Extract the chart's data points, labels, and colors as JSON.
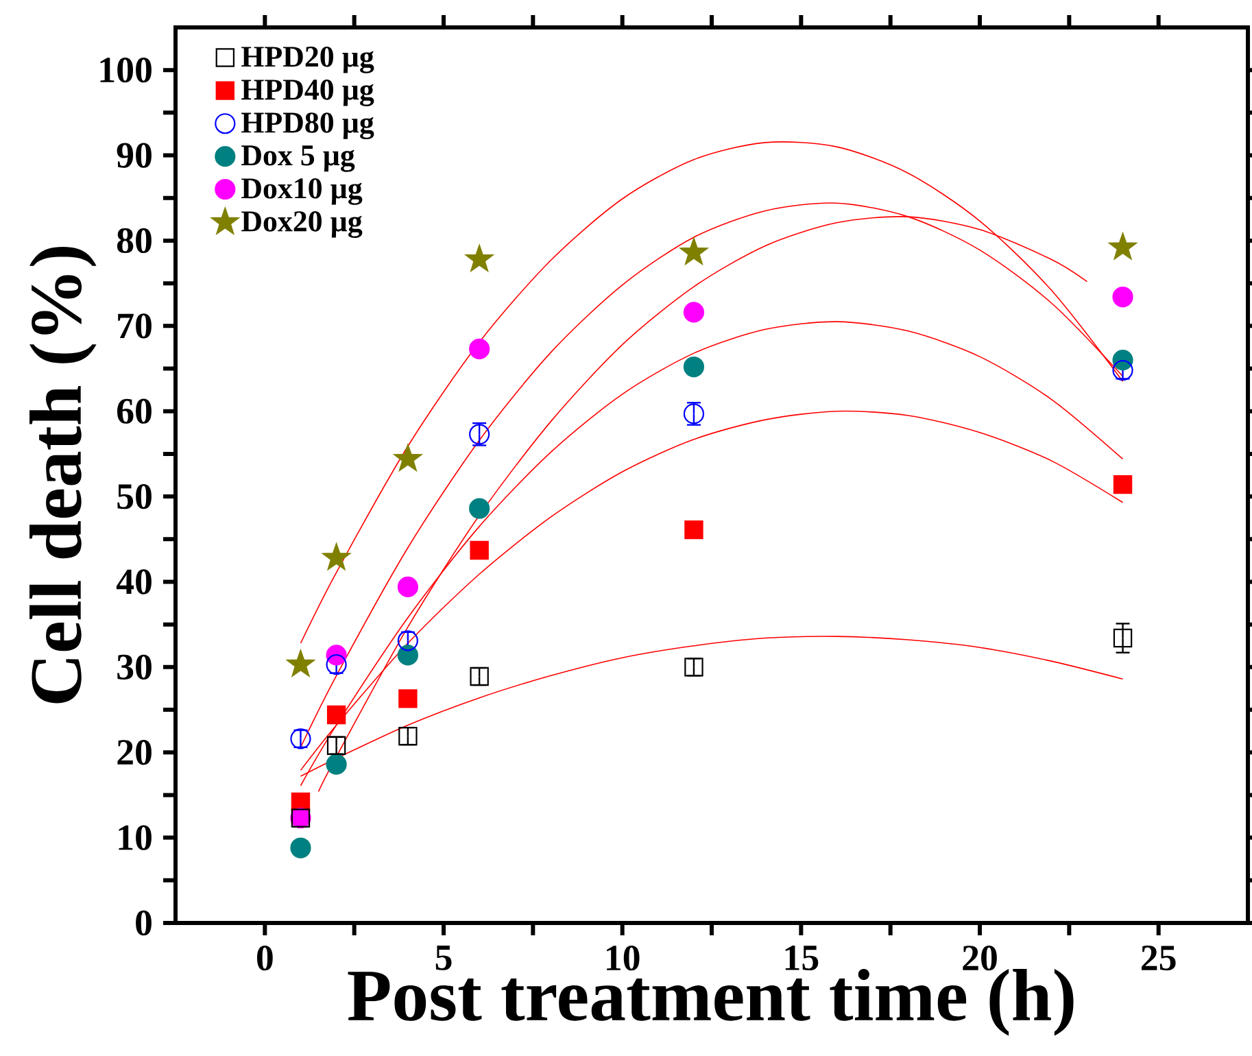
{
  "chart_data": {
    "type": "scatter",
    "xlabel": "Post treatment time (h)",
    "ylabel": "Cell death (%)",
    "xlim": [
      -2.5,
      27.5
    ],
    "ylim": [
      0,
      105
    ],
    "xticks": [
      0,
      {
        "value": 2.5,
        "label": null
      },
      5,
      {
        "value": 7.5,
        "label": null
      },
      10,
      {
        "value": 12.5,
        "label": null
      },
      15,
      {
        "value": 17.5,
        "label": null
      },
      20,
      {
        "value": 22.5,
        "label": null
      },
      25
    ],
    "yticks": [
      0,
      {
        "value": 5,
        "label": null
      },
      10,
      {
        "value": 15,
        "label": null
      },
      20,
      {
        "value": 25,
        "label": null
      },
      30,
      {
        "value": 35,
        "label": null
      },
      40,
      {
        "value": 45,
        "label": null
      },
      50,
      {
        "value": 55,
        "label": null
      },
      60,
      {
        "value": 65,
        "label": null
      },
      70,
      {
        "value": 75,
        "label": null
      },
      80,
      {
        "value": 85,
        "label": null
      },
      90,
      {
        "value": 95,
        "label": null
      },
      100
    ],
    "legend": "top left",
    "x": [
      1,
      2,
      4,
      6,
      12,
      24
    ],
    "series": [
      {
        "name": "HPD20 µg",
        "color": "#000000",
        "marker": "square",
        "values": [
          12.3,
          20.8,
          21.9,
          28.9,
          30.0,
          33.4
        ],
        "errors": [
          1,
          1,
          1,
          1,
          1,
          1.7
        ]
      },
      {
        "name": "HPD40 µg",
        "color": "#ff0000",
        "marker": "square",
        "values": [
          14.2,
          24.4,
          26.3,
          43.7,
          46.1,
          51.4
        ]
      },
      {
        "name": "HPD80 µg",
        "color": "#0000ff",
        "marker": "circle",
        "values": [
          21.6,
          30.3,
          33.1,
          57.3,
          59.7,
          64.8
        ],
        "errors": [
          1,
          1,
          1,
          1.3,
          1.3,
          1
        ]
      },
      {
        "name": "Dox 5 µg",
        "color": "#008080",
        "marker": "circle",
        "values": [
          8.8,
          18.6,
          31.4,
          48.6,
          65.2,
          66.0
        ]
      },
      {
        "name": "Dox10 µg",
        "color": "#ff00ff",
        "marker": "circle",
        "values": [
          12.3,
          31.4,
          39.4,
          67.3,
          71.6,
          73.4
        ]
      },
      {
        "name": "Dox20 µg",
        "color": "#808000",
        "marker": "star",
        "values": [
          30.3,
          42.8,
          54.4,
          77.8,
          78.6,
          79.2
        ]
      },
      {
        "type": "line",
        "color": "#ff0000",
        "marker": "none",
        "x": [
          1,
          2,
          4,
          6,
          8,
          10,
          12,
          14,
          16,
          18,
          20,
          22,
          24
        ],
        "values": [
          32.8,
          41.1,
          55.9,
          68.1,
          77.7,
          84.9,
          89.5,
          91.5,
          91.0,
          87.9,
          82.3,
          74.2,
          63.5
        ]
      },
      {
        "type": "line",
        "color": "#ff0000",
        "marker": "none",
        "x": [
          1,
          2,
          4,
          6,
          8,
          10,
          12,
          14,
          16,
          18,
          20,
          22,
          24
        ],
        "values": [
          20.6,
          29.0,
          44.0,
          56.6,
          66.9,
          74.8,
          80.4,
          83.5,
          84.4,
          82.8,
          78.9,
          72.7,
          64.1
        ]
      },
      {
        "type": "line",
        "color": "#ff0000",
        "marker": "none",
        "x": [
          1.5,
          2,
          4,
          6,
          8,
          10,
          12,
          14,
          16,
          18,
          20,
          22,
          23
        ],
        "values": [
          15.4,
          19.5,
          34.7,
          47.8,
          58.8,
          67.8,
          74.6,
          79.4,
          82.1,
          82.8,
          81.3,
          77.8,
          75.2
        ]
      },
      {
        "type": "line",
        "color": "#ff0000",
        "marker": "none",
        "x": [
          1,
          2,
          4,
          6,
          8,
          10,
          12,
          14,
          16,
          18,
          20,
          22,
          24
        ],
        "values": [
          16.1,
          23.2,
          35.8,
          46.5,
          55.2,
          62.0,
          66.8,
          69.6,
          70.5,
          69.4,
          66.4,
          61.4,
          54.4
        ]
      },
      {
        "type": "line",
        "color": "#ff0000",
        "marker": "none",
        "x": [
          1,
          2,
          4,
          6,
          8,
          10,
          12,
          14,
          16,
          18,
          20,
          22,
          24
        ],
        "values": [
          17.9,
          23.2,
          32.8,
          40.9,
          47.6,
          52.9,
          56.7,
          59.0,
          60.0,
          59.5,
          57.5,
          54.2,
          49.3
        ]
      },
      {
        "type": "line",
        "color": "#ff0000",
        "marker": "none",
        "x": [
          1,
          2,
          4,
          6,
          8,
          10,
          12,
          14,
          16,
          18,
          20,
          22,
          24
        ],
        "values": [
          17.2,
          19.3,
          23.2,
          26.4,
          29.0,
          31.1,
          32.5,
          33.4,
          33.6,
          33.2,
          32.3,
          30.7,
          28.6
        ]
      }
    ]
  }
}
